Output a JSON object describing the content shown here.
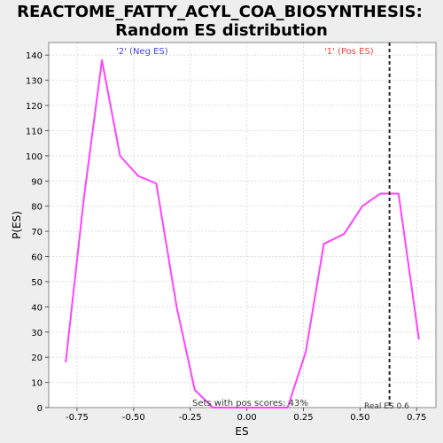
{
  "chart_data": {
    "type": "line",
    "title_line1": "REACTOME_FATTY_ACYL_COA_BIOSYNTHESIS:",
    "title_line2": "Random ES distribution",
    "xlabel": "ES",
    "ylabel": "P(ES)",
    "xlim": [
      -0.875,
      0.835
    ],
    "ylim": [
      0,
      145
    ],
    "grid": true,
    "x_ticks": [
      -0.75,
      -0.5,
      -0.25,
      0.0,
      0.25,
      0.5,
      0.75
    ],
    "x_tick_labels": [
      "-0.75",
      "-0.50",
      "-0.25",
      "0.00",
      "0.25",
      "0.50",
      "0.75"
    ],
    "y_ticks": [
      0,
      10,
      20,
      30,
      40,
      50,
      60,
      70,
      80,
      90,
      100,
      110,
      120,
      130,
      140
    ],
    "y_tick_labels": [
      "0",
      "10",
      "20",
      "30",
      "40",
      "50",
      "60",
      "70",
      "80",
      "90",
      "100",
      "110",
      "120",
      "130",
      "140"
    ],
    "series": [
      {
        "color": "#ff44ff",
        "x": [
          -0.8,
          -0.72,
          -0.64,
          -0.56,
          -0.48,
          -0.4,
          -0.31,
          -0.23,
          -0.15,
          -0.07,
          0.01,
          0.1,
          0.18,
          0.26,
          0.34,
          0.43,
          0.51,
          0.59,
          0.67,
          0.76
        ],
        "y": [
          18,
          83,
          138,
          100,
          92,
          89,
          40,
          7,
          0,
          0,
          0,
          0,
          0,
          22,
          65,
          69,
          80,
          85,
          85,
          27
        ]
      }
    ],
    "vline": {
      "x": 0.63,
      "color": "#222222",
      "dashed": true
    },
    "annotations": {
      "neg_label": "'2' (Neg ES)",
      "pos_label": "'1' (Pos ES)",
      "pos_scores": "Sets with pos scores: 43%",
      "real_es": "Real ES 0.6"
    },
    "colors": {
      "neg_label": "#4444dd",
      "pos_label": "#ee4444",
      "plot_bg": "#ffffff",
      "page_bg": "#eeeeee",
      "grid": "#dddddd"
    }
  }
}
